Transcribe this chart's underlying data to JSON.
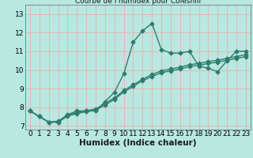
{
  "title": "Courbe de l'humidex pour Coleshill",
  "xlabel": "Humidex (Indice chaleur)",
  "x_values": [
    0,
    1,
    2,
    3,
    4,
    5,
    6,
    7,
    8,
    9,
    10,
    11,
    12,
    13,
    14,
    15,
    16,
    17,
    18,
    19,
    20,
    21,
    22,
    23
  ],
  "line1_y": [
    7.8,
    7.5,
    7.2,
    7.2,
    7.6,
    7.8,
    7.8,
    7.8,
    8.3,
    8.8,
    9.8,
    11.5,
    12.1,
    12.5,
    11.1,
    10.9,
    10.9,
    11.0,
    10.2,
    10.1,
    9.9,
    10.5,
    11.0,
    11.0
  ],
  "line2_y": [
    7.8,
    7.5,
    7.2,
    7.25,
    7.58,
    7.72,
    7.82,
    7.9,
    8.2,
    8.5,
    8.9,
    9.2,
    9.5,
    9.75,
    9.95,
    10.05,
    10.15,
    10.28,
    10.35,
    10.45,
    10.52,
    10.62,
    10.72,
    10.82
  ],
  "line3_y": [
    7.8,
    7.5,
    7.2,
    7.2,
    7.52,
    7.66,
    7.76,
    7.84,
    8.12,
    8.42,
    8.82,
    9.12,
    9.42,
    9.65,
    9.85,
    9.95,
    10.05,
    10.18,
    10.25,
    10.35,
    10.42,
    10.52,
    10.62,
    10.72
  ],
  "line_color": "#2e7d6e",
  "bg_color": "#b8e8e0",
  "grid_color": "#e8b0b0",
  "ylim": [
    6.8,
    13.5
  ],
  "xlim": [
    -0.5,
    23.5
  ],
  "yticks": [
    7,
    8,
    9,
    10,
    11,
    12,
    13
  ],
  "xticks": [
    0,
    1,
    2,
    3,
    4,
    5,
    6,
    7,
    8,
    9,
    10,
    11,
    12,
    13,
    14,
    15,
    16,
    17,
    18,
    19,
    20,
    21,
    22,
    23
  ],
  "marker": "D",
  "marker_size": 2.5,
  "linewidth": 1.0,
  "tick_fontsize": 6.5,
  "xlabel_fontsize": 7.5
}
